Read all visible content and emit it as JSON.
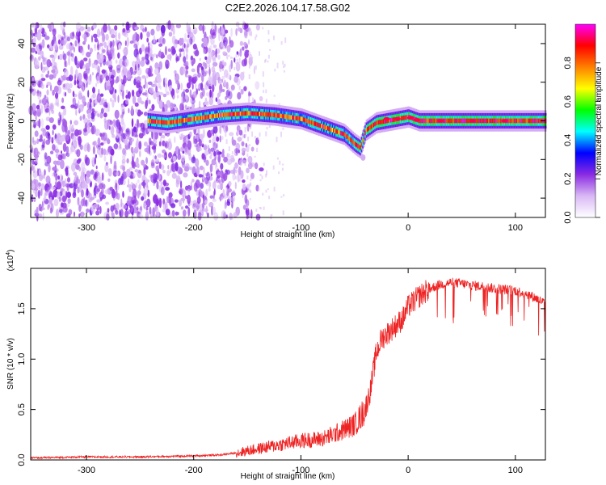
{
  "figure": {
    "title": "C2E2.2026.104.17.58.G02"
  },
  "chart_data": [
    {
      "type": "heatmap",
      "name": "spectrogram",
      "xlabel": "Height of straight line (km)",
      "ylabel": "Frequency (Hz)",
      "xlim": [
        -352,
        128
      ],
      "ylim": [
        -50,
        50
      ],
      "xticks": [
        -300,
        -200,
        -100,
        0,
        100
      ],
      "xticklabels": [
        "-300",
        "-200",
        "-100",
        "0",
        "100"
      ],
      "yticks": [
        -40,
        -20,
        0,
        20,
        40
      ],
      "yticklabels": [
        "-40",
        "-20",
        "0",
        "20",
        "40"
      ],
      "ridge": {
        "description": "frequency of the signal ridge vs height",
        "x": [
          -243,
          -225,
          -200,
          -175,
          -150,
          -125,
          -100,
          -80,
          -60,
          -50,
          -45,
          -40,
          -30,
          -20,
          -10,
          0,
          10,
          50,
          100,
          128
        ],
        "y": [
          0,
          -1,
          1,
          3,
          4,
          3,
          1,
          -3,
          -7,
          -12,
          -14,
          -5,
          -1,
          0,
          1,
          2,
          0,
          0,
          0,
          0
        ]
      },
      "noise_region_x": [
        -352,
        -175
      ]
    },
    {
      "type": "colorbar",
      "name": "colorbar",
      "label": "Normalized spectral amplitude",
      "range": [
        0,
        1
      ],
      "ticks": [
        0.0,
        0.2,
        0.4,
        0.6,
        0.8
      ],
      "ticklabels": [
        "0.0",
        "0.2",
        "0.4",
        "0.6",
        "0.8"
      ],
      "colors": [
        "#ffffff",
        "#d9b8f5",
        "#8a2be2",
        "#0000ff",
        "#00ffff",
        "#00ff00",
        "#ffff00",
        "#ff8000",
        "#ff0000",
        "#ff00ff"
      ]
    },
    {
      "type": "line",
      "name": "snr",
      "xlabel": "Height of straight line (km)",
      "ylabel": "SNR (10 * v/v)",
      "scale_label_prefix": "(x10",
      "scale_label_exp": "4",
      "scale_label_suffix": ")",
      "color": "#ee2222",
      "xlim": [
        -352,
        128
      ],
      "ylim": [
        0,
        1.9
      ],
      "xticks": [
        -300,
        -200,
        -100,
        0,
        100
      ],
      "xticklabels": [
        "-300",
        "-200",
        "-100",
        "0",
        "100"
      ],
      "yticks": [
        0.0,
        0.5,
        1.0,
        1.5
      ],
      "yticklabels": [
        "0.0",
        "0.5",
        "1.0",
        "1.5"
      ],
      "series": [
        {
          "name": "SNR",
          "x": [
            -352,
            -300,
            -250,
            -200,
            -175,
            -160,
            -150,
            -140,
            -125,
            -110,
            -100,
            -90,
            -80,
            -70,
            -60,
            -50,
            -45,
            -40,
            -35,
            -30,
            -25,
            -20,
            -15,
            -10,
            -5,
            0,
            10,
            20,
            30,
            40,
            50,
            60,
            70,
            80,
            90,
            100,
            110,
            120,
            128
          ],
          "y": [
            0.02,
            0.03,
            0.03,
            0.04,
            0.05,
            0.07,
            0.09,
            0.11,
            0.14,
            0.17,
            0.19,
            0.2,
            0.21,
            0.25,
            0.3,
            0.35,
            0.42,
            0.5,
            0.7,
            1.05,
            1.2,
            1.25,
            1.3,
            1.35,
            1.4,
            1.52,
            1.62,
            1.7,
            1.74,
            1.76,
            1.75,
            1.73,
            1.72,
            1.7,
            1.69,
            1.68,
            1.65,
            1.6,
            1.55
          ]
        }
      ]
    }
  ]
}
